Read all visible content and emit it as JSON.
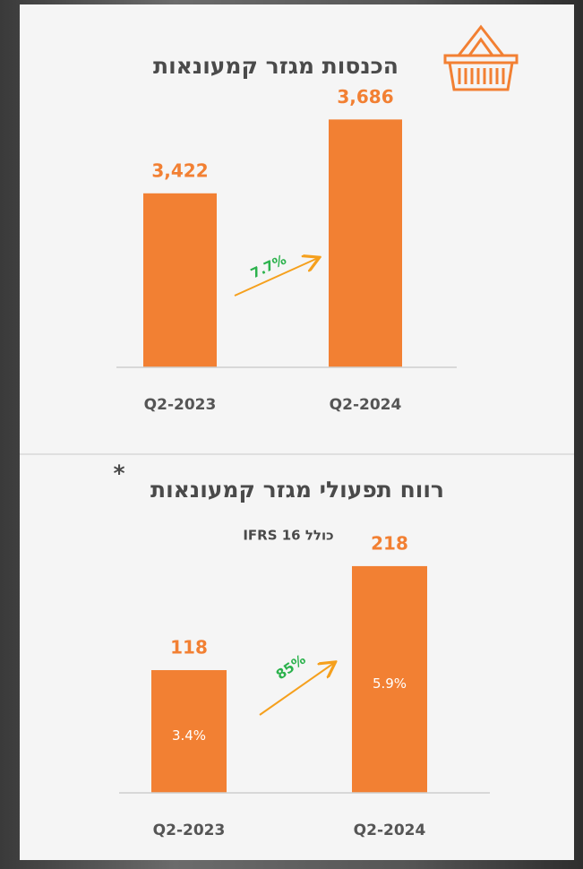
{
  "chart_data": [
    {
      "type": "bar",
      "title": "הכנסות מגזר קמעונאות",
      "categories": [
        "Q2-2023",
        "Q2-2024"
      ],
      "values": [
        3422,
        3686
      ],
      "value_labels": [
        "3,422",
        "3,686"
      ],
      "color": "#f28033",
      "ylim": [
        2800,
        3700
      ],
      "annotations": [
        "7.7%"
      ]
    },
    {
      "type": "bar",
      "title": "רווח תפעולי מגזר קמעונאות",
      "title_mark": "*",
      "subtitle": "כולל 16 IFRS",
      "categories": [
        "Q2-2023",
        "Q2-2024"
      ],
      "values": [
        118,
        218
      ],
      "inner_labels": [
        "3.4%",
        "5.9%"
      ],
      "color": "#f28033",
      "ylim": [
        0,
        230
      ],
      "annotations": [
        "85%"
      ]
    }
  ]
}
